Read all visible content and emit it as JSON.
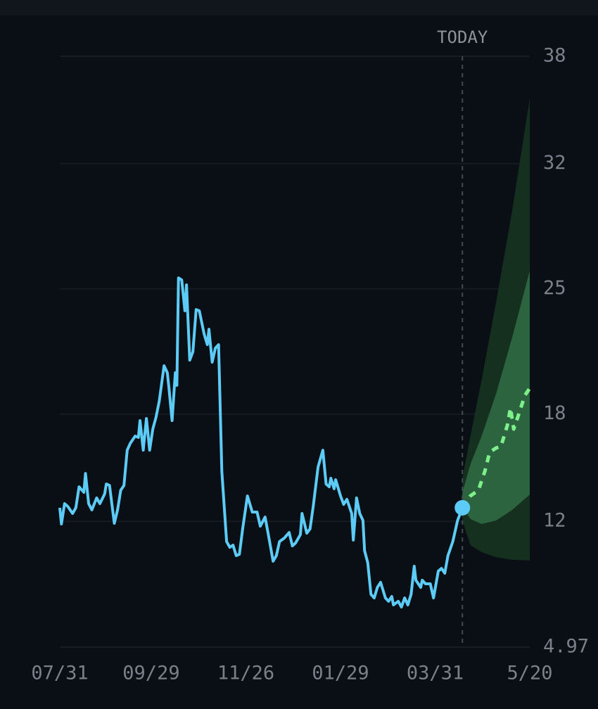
{
  "chart_data": {
    "type": "line",
    "today_label": "TODAY",
    "xlim": [
      0,
      293
    ],
    "xticks": [
      {
        "value": 0,
        "label": "07/31"
      },
      {
        "value": 57,
        "label": "09/29"
      },
      {
        "value": 116,
        "label": "11/26"
      },
      {
        "value": 175,
        "label": "01/29"
      },
      {
        "value": 234,
        "label": "03/31"
      },
      {
        "value": 293,
        "label": "5/20"
      }
    ],
    "ylim": [
      4.97,
      38
    ],
    "yticks": [
      4.97,
      12,
      18,
      25,
      32,
      38
    ],
    "grid": true,
    "bands": [
      {
        "color": "#16301f",
        "x": [
          251,
          256,
          263,
          272,
          282,
          293
        ],
        "upper": [
          14.41,
          16.77,
          19.91,
          24.24,
          29.35,
          35.64
        ],
        "lower": [
          12.05,
          10.67,
          10.28,
          10.0,
          9.85,
          9.81
        ]
      },
      {
        "color": "#2d6440",
        "x": [
          251,
          256,
          263,
          272,
          282,
          293
        ],
        "upper": [
          13.62,
          15.19,
          16.77,
          19.13,
          22.27,
          26.01
        ],
        "lower": [
          12.83,
          12.13,
          11.85,
          12.05,
          12.64,
          13.5
        ]
      }
    ],
    "series": [
      {
        "color": "#5ccbf5",
        "x": [
          0,
          1,
          3,
          5,
          8,
          10,
          12,
          15,
          16,
          18,
          20,
          23,
          25,
          28,
          29,
          31,
          34,
          36,
          38,
          40,
          42,
          44,
          47,
          49,
          50,
          52,
          54,
          56,
          58,
          60,
          62,
          65,
          67,
          68,
          70,
          72,
          73,
          74,
          76,
          78,
          79,
          81,
          83,
          85,
          87,
          90,
          92,
          93,
          95,
          97,
          99,
          101,
          104,
          106,
          108,
          110,
          112,
          114,
          117,
          120,
          123,
          125,
          128,
          130,
          133,
          135,
          137,
          140,
          143,
          145,
          147,
          150,
          151,
          154,
          156,
          158,
          161,
          164,
          166,
          168,
          169,
          171,
          172,
          175,
          177,
          179,
          182,
          183,
          185,
          187,
          189,
          190,
          192,
          194,
          196,
          198,
          200,
          203,
          205,
          207,
          208,
          211,
          213,
          215,
          217,
          219,
          221,
          222,
          225,
          226,
          228,
          231,
          233,
          236,
          238,
          240,
          242,
          245,
          248,
          251
        ],
        "values": [
          12.76,
          11.85,
          12.99,
          12.83,
          12.44,
          12.76,
          13.93,
          13.62,
          14.68,
          12.99,
          12.64,
          13.31,
          12.99,
          13.54,
          14.09,
          14.01,
          11.89,
          12.64,
          13.74,
          14.01,
          15.98,
          16.37,
          16.77,
          16.69,
          17.63,
          15.98,
          17.75,
          15.98,
          17.16,
          17.83,
          18.73,
          20.7,
          20.31,
          19.52,
          17.63,
          20.31,
          19.6,
          25.61,
          25.5,
          23.77,
          25.22,
          21.01,
          21.49,
          23.84,
          23.77,
          22.47,
          21.88,
          22.74,
          20.9,
          21.68,
          21.88,
          14.8,
          10.87,
          10.55,
          10.67,
          10.08,
          10.16,
          11.58,
          13.42,
          12.52,
          12.52,
          11.73,
          12.24,
          11.26,
          9.77,
          10.08,
          10.87,
          11.07,
          11.38,
          10.63,
          10.79,
          11.26,
          12.44,
          11.34,
          11.58,
          12.83,
          15.04,
          15.98,
          14.09,
          13.93,
          14.41,
          13.82,
          14.33,
          13.42,
          12.95,
          13.23,
          12.44,
          10.95,
          13.31,
          12.44,
          12.05,
          10.36,
          9.69,
          7.92,
          7.72,
          8.31,
          8.59,
          7.72,
          7.53,
          7.8,
          7.33,
          7.53,
          7.21,
          7.72,
          7.33,
          7.92,
          9.49,
          8.71,
          8.31,
          8.71,
          8.51,
          8.51,
          7.72,
          9.22,
          9.37,
          9.1,
          10.08,
          10.87,
          12.05,
          12.76
        ]
      },
      {
        "color": "#7ef08a",
        "dash": true,
        "x": [
          251,
          256,
          261,
          265,
          268,
          272,
          275,
          279,
          281,
          283,
          286,
          290,
          293
        ],
        "values": [
          12.76,
          13.42,
          13.74,
          14.8,
          15.86,
          16.1,
          16.18,
          17.36,
          18.34,
          17.16,
          17.95,
          19.05,
          19.44
        ]
      }
    ]
  }
}
